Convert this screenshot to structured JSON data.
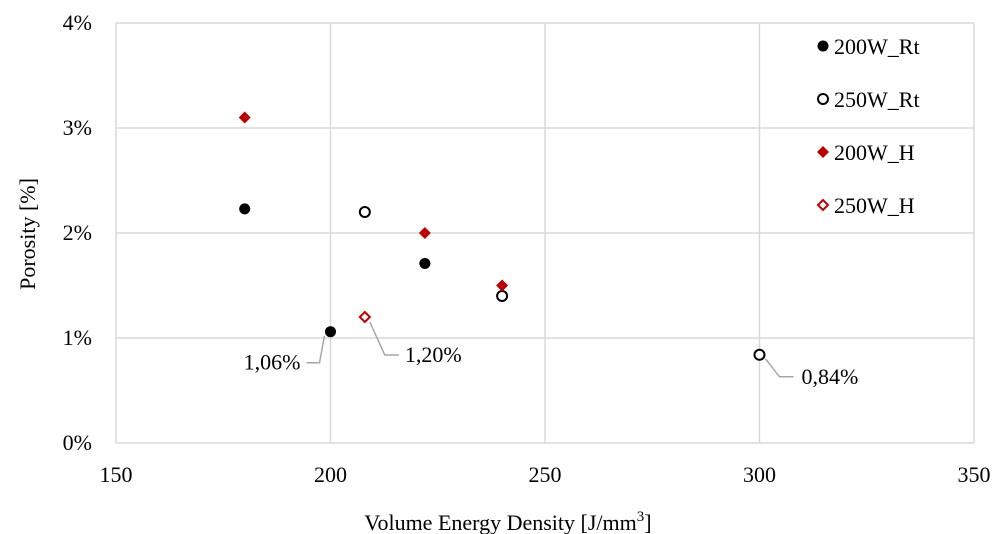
{
  "chart_data": {
    "type": "scatter",
    "title": "",
    "xlabel": "Volume Energy Density [J/mm",
    "xlabel_sup": "3",
    "xlabel_suffix": "]",
    "ylabel": "Porosity [%]",
    "xlim": [
      150,
      350
    ],
    "ylim": [
      0,
      4
    ],
    "x_ticks": [
      150,
      200,
      250,
      300,
      350
    ],
    "y_ticks": [
      0,
      1,
      2,
      3,
      4
    ],
    "y_tick_labels": [
      "0%",
      "1%",
      "2%",
      "3%",
      "4%"
    ],
    "grid": true,
    "legend_position": "top-right",
    "series": [
      {
        "name": "200W_Rt",
        "marker": "circle",
        "filled": true,
        "color": "#000000",
        "points": [
          [
            180,
            2.23
          ],
          [
            200,
            1.06
          ],
          [
            222,
            1.71
          ]
        ]
      },
      {
        "name": "250W_Rt",
        "marker": "circle",
        "filled": false,
        "color": "#000000",
        "points": [
          [
            208,
            2.2
          ],
          [
            240,
            1.4
          ],
          [
            300,
            0.84
          ]
        ]
      },
      {
        "name": "200W_H",
        "marker": "diamond",
        "filled": true,
        "color": "#c00000",
        "points": [
          [
            180,
            3.1
          ],
          [
            222,
            2.0
          ],
          [
            240,
            1.5
          ]
        ]
      },
      {
        "name": "250W_H",
        "marker": "diamond",
        "filled": false,
        "color": "#c00000",
        "points": [
          [
            208,
            1.2
          ]
        ]
      }
    ],
    "annotations": [
      {
        "text": "1,06%",
        "point": [
          200,
          1.06
        ],
        "side": "left"
      },
      {
        "text": "1,20%",
        "point": [
          208,
          1.2
        ],
        "side": "right"
      },
      {
        "text": "0,84%",
        "point": [
          300,
          0.84
        ],
        "side": "right"
      }
    ]
  }
}
